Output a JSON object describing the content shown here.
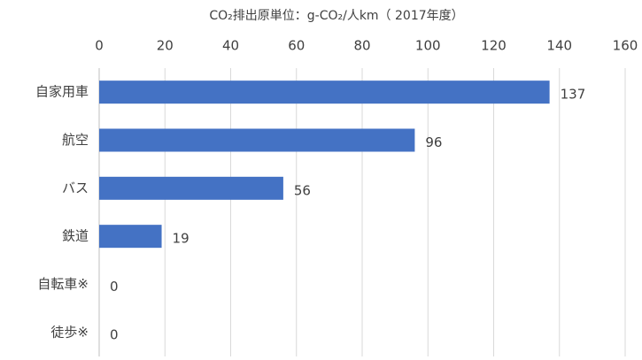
{
  "chart_data": {
    "type": "bar",
    "title": "CO₂排出原単位：g-CO₂/人km（ 2017年度）",
    "categories": [
      "自家用車",
      "航空",
      "バス",
      "鉄道",
      "自転車※",
      "徒歩※"
    ],
    "values": [
      137,
      96,
      56,
      19,
      0,
      0
    ],
    "color": "#4472c4",
    "xlim": [
      0,
      160
    ],
    "xticks": [
      0,
      20,
      40,
      60,
      80,
      100,
      120,
      140,
      160
    ],
    "grid": true
  }
}
